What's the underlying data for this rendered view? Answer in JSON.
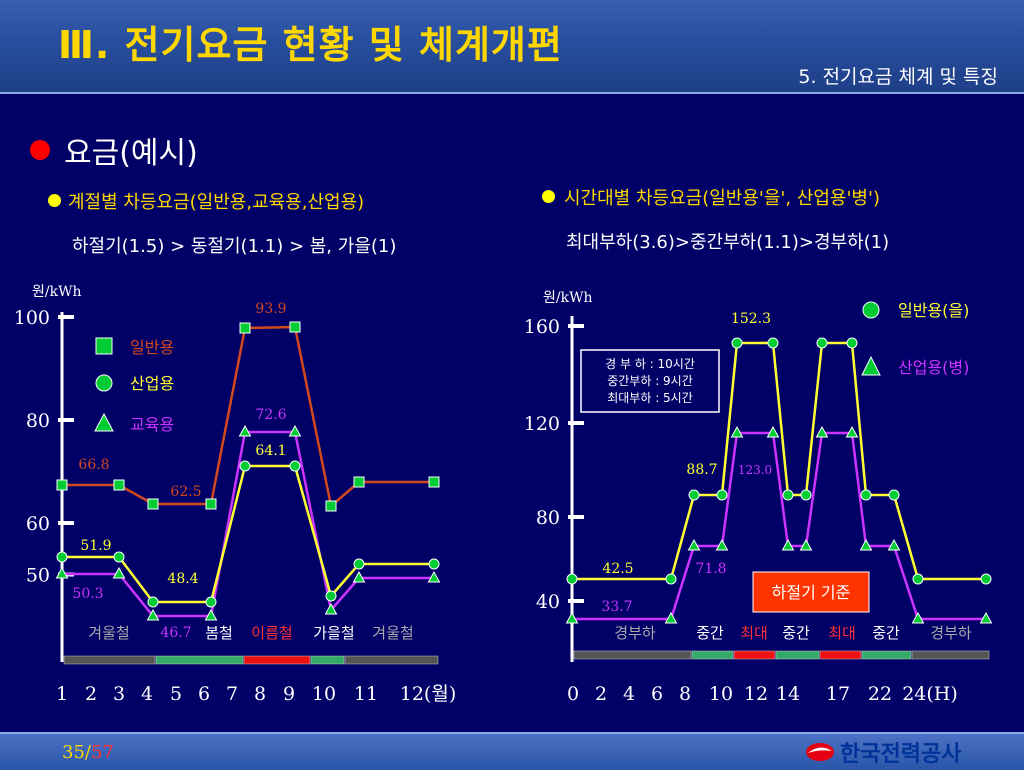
{
  "header": {
    "title": "Ⅲ. 전기요금 현황 및 체계개편",
    "subtitle": "5. 전기요금 체계 및 특징"
  },
  "section": {
    "title": "요금(예시)"
  },
  "left": {
    "heading": "계절별 차등요금(일반용,교육용,산업용)",
    "subheading": "하절기(1.5) > 동절기(1.1) > 봄, 가을(1)"
  },
  "right": {
    "heading": "시간대별 차등요금(일반용'을', 산업용'병')",
    "subheading": "최대부하(3.6)>중간부하(1.1)>경부하(1)"
  },
  "footer": {
    "page": "35",
    "total": "57",
    "logo": "한국전력공사"
  },
  "colors": {
    "background": "#000066",
    "title": "#ffd700",
    "general": "#d2481e",
    "industrial": "#ffff33",
    "education": "#cc33ff",
    "marker": "#00cc33"
  },
  "chart_data": [
    {
      "type": "line",
      "ylabel": "원/kWh",
      "xlabel": "(월)",
      "x_ticks": [
        "1",
        "2",
        "3",
        "4",
        "5",
        "6",
        "7",
        "8",
        "9",
        "10",
        "11",
        "12(월)"
      ],
      "y_ticks": [
        "100",
        "80",
        "60",
        "50"
      ],
      "legend": [
        "일반용",
        "산업용",
        "교육용"
      ],
      "data_labels": [
        "93.9",
        "72.6",
        "64.1",
        "66.8",
        "62.5",
        "51.9",
        "48.4",
        "50.3",
        "46.7"
      ],
      "season_labels": [
        "겨울철",
        "봄철",
        "이름철",
        "가을철",
        "겨울철"
      ],
      "series": [
        {
          "name": "일반용",
          "values": [
            66.8,
            66.8,
            62.5,
            62.5,
            62.5,
            93.9,
            93.9,
            93.9,
            62.5,
            66.8,
            66.8,
            66.8
          ]
        },
        {
          "name": "산업용",
          "values": [
            51.9,
            51.9,
            51.9,
            46.7,
            46.7,
            46.7,
            64.1,
            64.1,
            64.1,
            46.7,
            51.9,
            51.9
          ]
        },
        {
          "name": "교육용",
          "values": [
            50.3,
            50.3,
            50.3,
            44.3,
            44.3,
            44.3,
            72.6,
            72.6,
            72.6,
            44.3,
            50.3,
            50.3
          ]
        }
      ],
      "ylim": [
        40,
        104
      ]
    },
    {
      "type": "line",
      "ylabel": "원/kWh",
      "xlabel": "(H)",
      "x_ticks": [
        "0",
        "2",
        "4",
        "6",
        "8",
        "10",
        "12",
        "14",
        "17",
        "22",
        "24(H)"
      ],
      "y_ticks": [
        "160",
        "120",
        "80",
        "40"
      ],
      "legend": [
        "일반용(을)",
        "산업용(병)"
      ],
      "data_labels": [
        "152.3",
        "88.7",
        "123.0",
        "42.5",
        "71.8",
        "33.7"
      ],
      "note": [
        "경  부 하 : 10시간",
        "중간부하 :  9시간",
        "최대부하 :  5시간"
      ],
      "period_labels": [
        "경부하",
        "중간",
        "최대",
        "중간",
        "최대",
        "중간",
        "경부하"
      ],
      "boxed_note": "하절기 기준",
      "series": [
        {
          "name": "일반용(을)",
          "values": [
            42.5,
            42.5,
            42.5,
            88.7,
            152.3,
            88.7,
            152.3,
            88.7,
            42.5
          ]
        },
        {
          "name": "산업용(병)",
          "values": [
            33.7,
            33.7,
            33.7,
            71.8,
            123.0,
            71.8,
            123.0,
            71.8,
            33.7
          ]
        }
      ],
      "ylim": [
        28,
        166
      ]
    }
  ]
}
